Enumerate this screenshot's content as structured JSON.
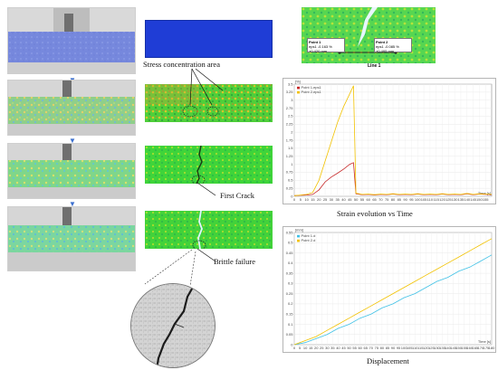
{
  "labels": {
    "stress": "Stress concentration area",
    "first_crack": "First Crack",
    "brittle": "Brittle failure"
  },
  "chart_captions": {
    "strain": "Strain evolution vs Time",
    "displacement": "Displacement"
  },
  "inset": {
    "point1_title": "Point 1",
    "point1_eps": "eps1",
    "point1_strain": "-0.163 %",
    "point1_disp": "+0.420 mm",
    "point2_title": "Point 2",
    "point2_eps": "eps1",
    "point2_strain": "-0.085 %",
    "point2_disp": "+0.495 mm",
    "line_label": "Line 1"
  },
  "colors": {
    "point1_series": "#c62828",
    "point2_series": "#f2c200",
    "point1_disp_series": "#3fc1e6",
    "strain_field_green": "#2fd12f",
    "blank_field_blue": "#1f3dd6"
  },
  "chart_data": [
    {
      "type": "line",
      "ylabel": "[%]",
      "xlabel": "Time [s]",
      "legend": [
        "Point 1.eps1",
        "Point 2.eps1"
      ],
      "legend_position": "top-left",
      "yticks": [
        "3.5",
        "3.25",
        "3",
        "2.75",
        "2.5",
        "2.25",
        "2",
        "1.75",
        "1.5",
        "1.25",
        "1",
        "0.75",
        "0.5",
        "0.25",
        "0"
      ],
      "xticks": [
        "0",
        "5",
        "10",
        "15",
        "20",
        "25",
        "30",
        "35",
        "40",
        "45",
        "50",
        "55",
        "60",
        "65",
        "70",
        "75",
        "80",
        "85",
        "90",
        "95",
        "100",
        "105",
        "110",
        "115",
        "120",
        "125",
        "130",
        "135",
        "140",
        "145",
        "150",
        "155"
      ],
      "ylim": [
        0,
        3.5
      ],
      "xlim": [
        0,
        160
      ],
      "grid": true,
      "series": [
        {
          "name": "Point 1.eps1",
          "x": [
            0,
            5,
            10,
            15,
            20,
            25,
            30,
            35,
            40,
            45,
            48,
            50,
            55,
            60,
            65,
            70,
            75,
            80,
            85,
            90,
            95,
            100,
            105,
            110,
            115,
            120,
            125,
            130,
            135,
            140,
            145,
            150,
            155,
            160
          ],
          "y": [
            0.02,
            0.03,
            0.04,
            0.06,
            0.2,
            0.45,
            0.6,
            0.72,
            0.85,
            1.0,
            1.05,
            0.08,
            0.05,
            0.06,
            0.04,
            0.06,
            0.05,
            0.07,
            0.05,
            0.06,
            0.05,
            0.07,
            0.05,
            0.06,
            0.05,
            0.07,
            0.05,
            0.06,
            0.05,
            0.08,
            0.05,
            0.07,
            0.06,
            0.05
          ]
        },
        {
          "name": "Point 2.eps1",
          "x": [
            0,
            5,
            10,
            15,
            20,
            25,
            30,
            35,
            40,
            45,
            48,
            50,
            55,
            60,
            65,
            70,
            75,
            80,
            85,
            90,
            95,
            100,
            105,
            110,
            115,
            120,
            125,
            130,
            135,
            140,
            145,
            150,
            155,
            160
          ],
          "y": [
            0.02,
            0.04,
            0.06,
            0.12,
            0.5,
            1.1,
            1.7,
            2.3,
            2.8,
            3.2,
            3.45,
            0.1,
            0.06,
            0.07,
            0.05,
            0.07,
            0.06,
            0.08,
            0.06,
            0.07,
            0.06,
            0.08,
            0.06,
            0.07,
            0.06,
            0.08,
            0.06,
            0.07,
            0.06,
            0.09,
            0.06,
            0.08,
            0.07,
            0.06
          ]
        }
      ]
    },
    {
      "type": "line",
      "ylabel": "[mm]",
      "xlabel": "Time [s]",
      "legend": [
        "Point 1.d",
        "Point 2.d"
      ],
      "legend_position": "top-left",
      "yticks": [
        "0.55",
        "0.5",
        "0.45",
        "0.4",
        "0.35",
        "0.3",
        "0.25",
        "0.2",
        "0.15",
        "0.1",
        "0.05",
        "0"
      ],
      "xticks": [
        "0",
        "5",
        "10",
        "15",
        "20",
        "25",
        "30",
        "35",
        "40",
        "45",
        "50",
        "55",
        "60",
        "65",
        "70",
        "75",
        "80",
        "85",
        "90",
        "95",
        "100",
        "105",
        "110",
        "115",
        "120",
        "125",
        "130",
        "135",
        "140",
        "145",
        "150",
        "155",
        "160",
        "165",
        "170",
        "175",
        "180"
      ],
      "ylim": [
        0,
        0.55
      ],
      "xlim": [
        0,
        180
      ],
      "grid": true,
      "series": [
        {
          "name": "Point 1.d",
          "x": [
            0,
            10,
            20,
            30,
            40,
            50,
            60,
            70,
            80,
            90,
            100,
            110,
            120,
            130,
            140,
            150,
            160,
            170,
            180
          ],
          "y": [
            0.0,
            0.01,
            0.03,
            0.05,
            0.08,
            0.1,
            0.13,
            0.15,
            0.18,
            0.2,
            0.23,
            0.25,
            0.28,
            0.31,
            0.33,
            0.36,
            0.38,
            0.41,
            0.44
          ]
        },
        {
          "name": "Point 2.d",
          "x": [
            0,
            10,
            20,
            30,
            40,
            50,
            60,
            70,
            80,
            90,
            100,
            110,
            120,
            130,
            140,
            150,
            160,
            170,
            180
          ],
          "y": [
            0.0,
            0.02,
            0.04,
            0.07,
            0.1,
            0.13,
            0.16,
            0.19,
            0.22,
            0.25,
            0.28,
            0.31,
            0.34,
            0.37,
            0.4,
            0.43,
            0.46,
            0.49,
            0.52
          ]
        }
      ]
    }
  ]
}
